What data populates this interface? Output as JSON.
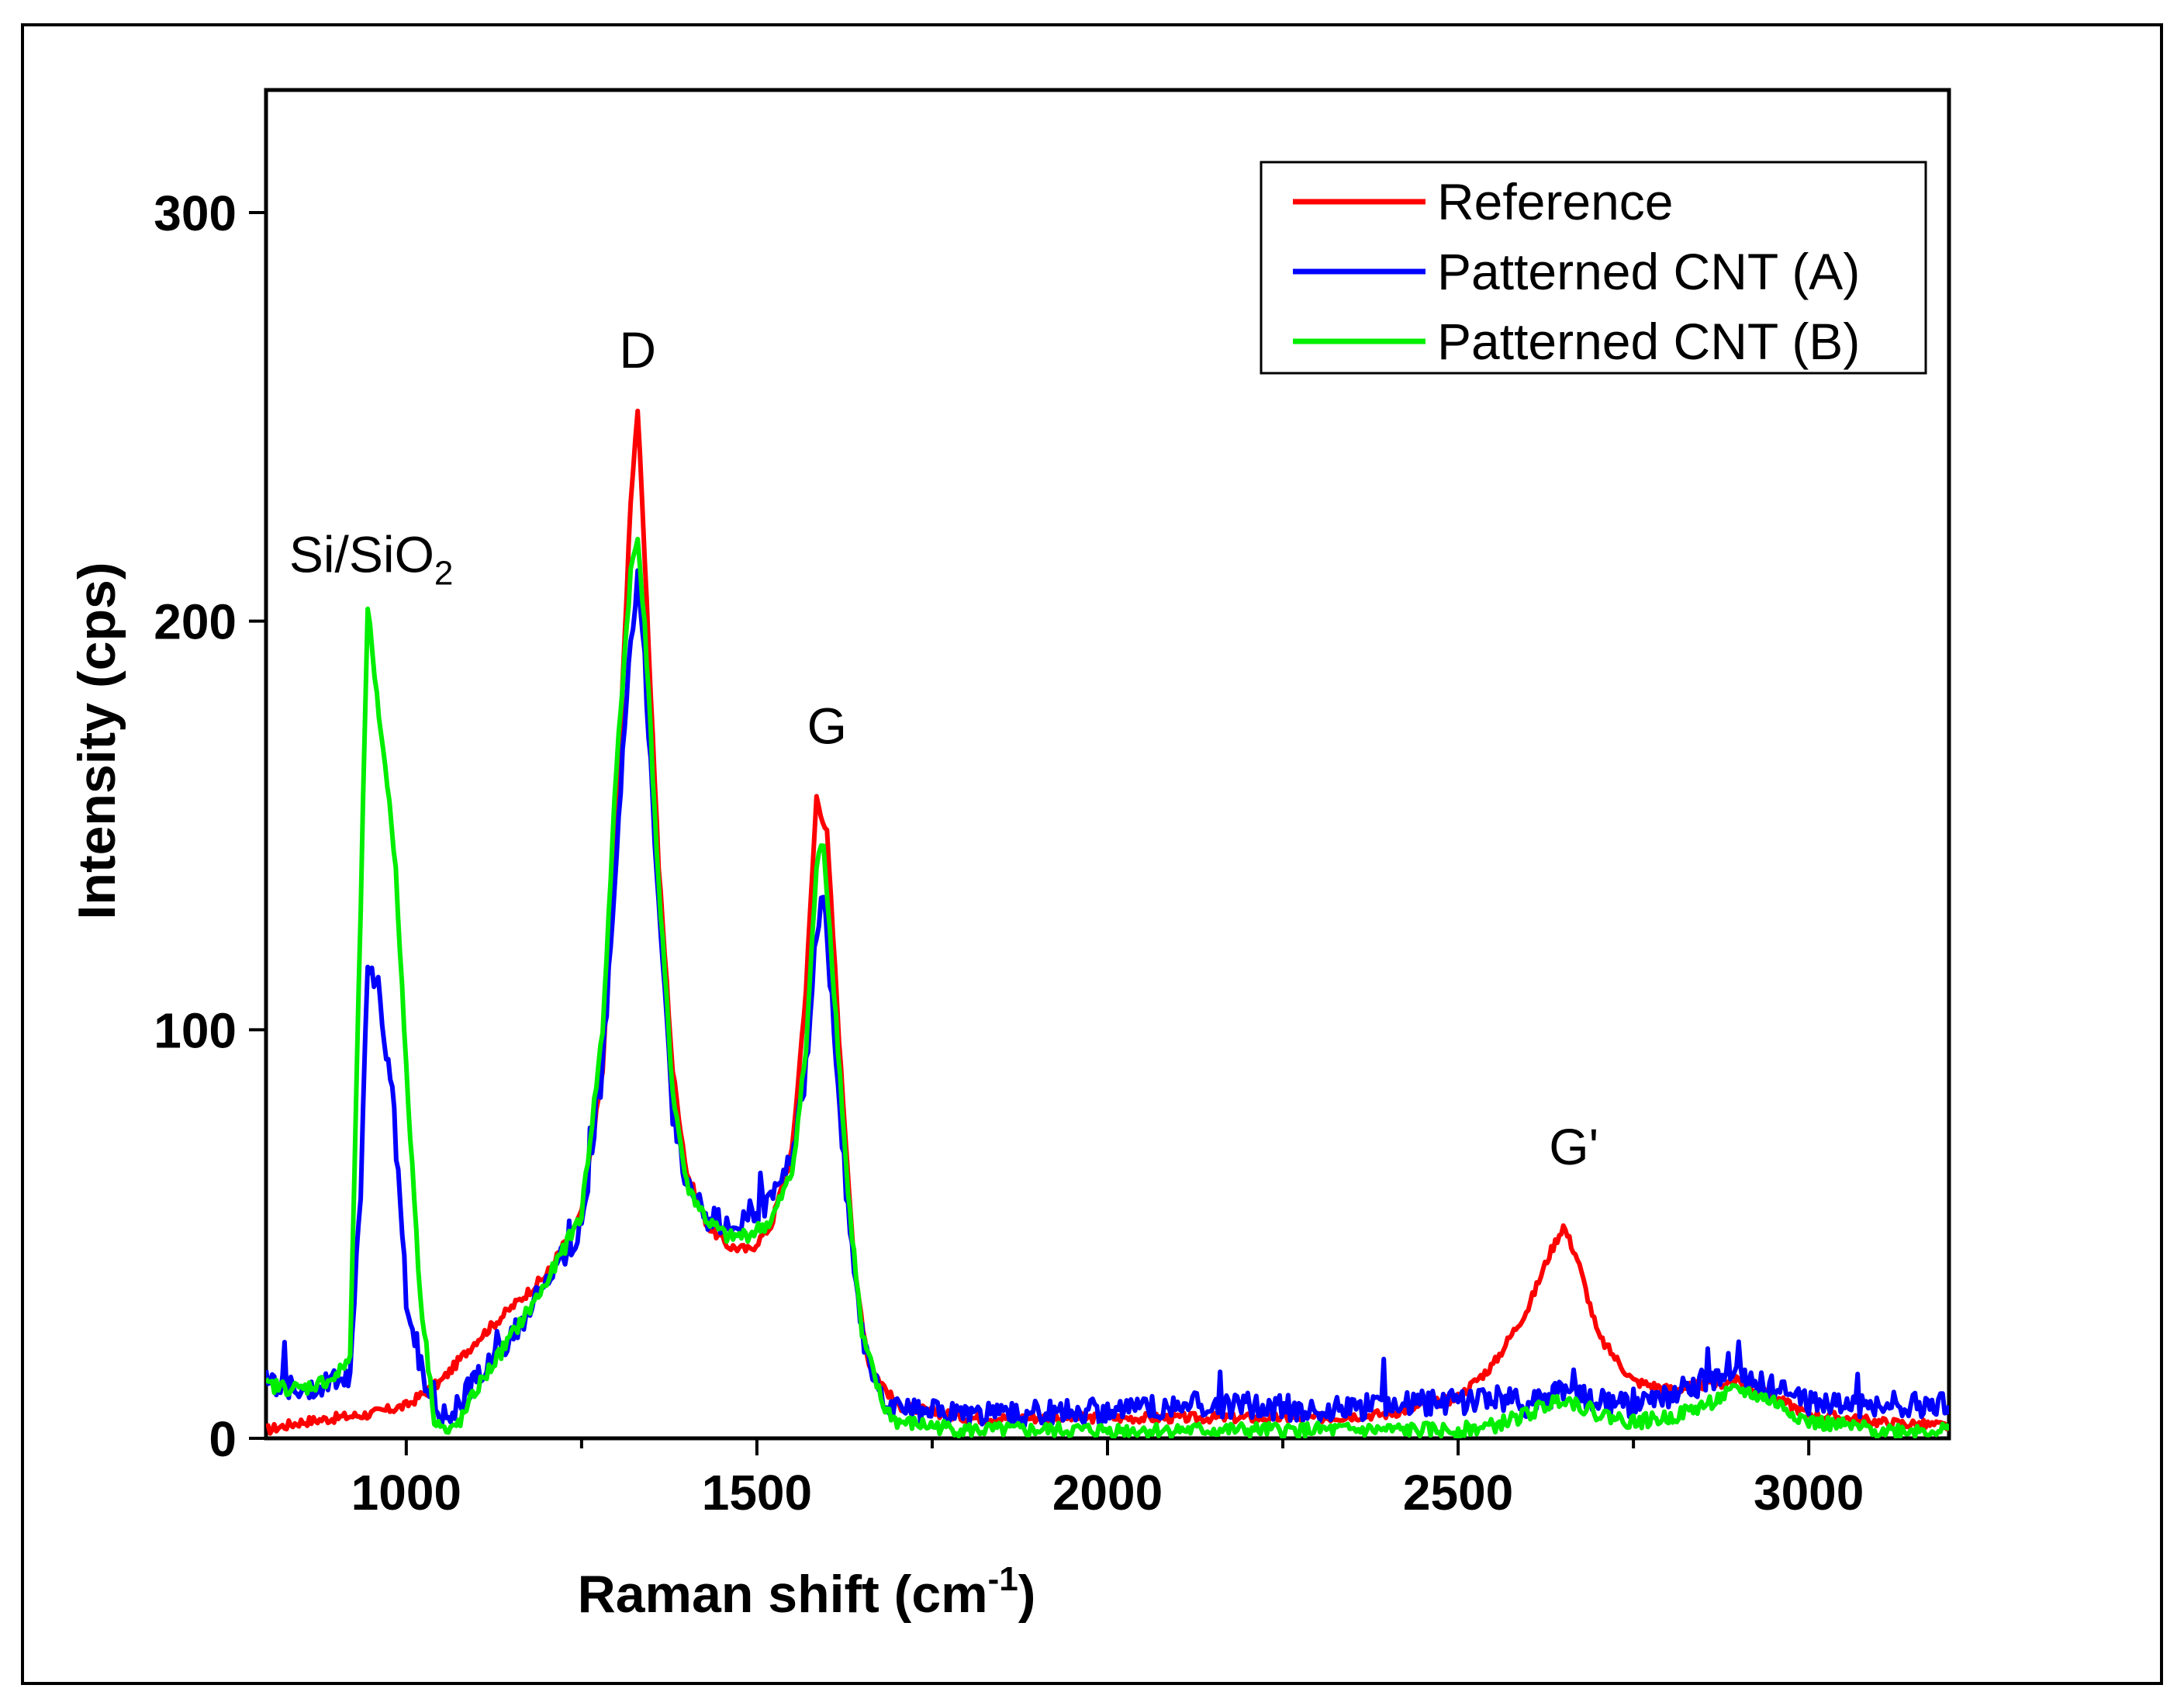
{
  "chart_data": {
    "type": "line",
    "title": "",
    "xlabel": "Raman shift (cm",
    "xlabel_sup": "-1",
    "xlabel_tail": ")",
    "ylabel": "Intensity (cps)",
    "xlim": [
      800,
      3200
    ],
    "ylim": [
      0,
      330
    ],
    "xticks": [
      1000,
      1500,
      2000,
      2500,
      3000
    ],
    "xticks_minor": [
      1250,
      1750,
      2250,
      2750
    ],
    "yticks": [
      0,
      100,
      200,
      300
    ],
    "grid": false,
    "legend_position": "top-right",
    "annotations": [
      {
        "text": "Si/SiO",
        "sub": "2",
        "x": 950,
        "y": 212
      },
      {
        "text": "D",
        "x": 1330,
        "y": 262
      },
      {
        "text": "G",
        "x": 1600,
        "y": 170
      },
      {
        "text": "G'",
        "x": 2665,
        "y": 67
      }
    ],
    "series": [
      {
        "name": "Reference",
        "color": "#ff0000",
        "x": [
          800,
          850,
          900,
          950,
          1000,
          1050,
          1100,
          1150,
          1200,
          1250,
          1280,
          1300,
          1320,
          1330,
          1340,
          1360,
          1380,
          1400,
          1430,
          1460,
          1490,
          1520,
          1550,
          1570,
          1585,
          1600,
          1620,
          1640,
          1660,
          1700,
          1800,
          1900,
          2000,
          2100,
          2200,
          2300,
          2400,
          2500,
          2550,
          2600,
          2630,
          2650,
          2670,
          2700,
          2750,
          2800,
          2900,
          3000,
          3100,
          3200
        ],
        "y": [
          2,
          4,
          5,
          6,
          8,
          14,
          24,
          32,
          40,
          55,
          90,
          150,
          230,
          252,
          215,
          140,
          90,
          65,
          52,
          47,
          46,
          52,
          70,
          110,
          157,
          148,
          90,
          40,
          18,
          8,
          5,
          5,
          5,
          5,
          5,
          5,
          6,
          10,
          18,
          32,
          45,
          52,
          44,
          25,
          14,
          12,
          14,
          6,
          4,
          3
        ]
      },
      {
        "name": "Patterned CNT (A)",
        "color": "#0000ff",
        "x": [
          800,
          850,
          900,
          920,
          935,
          945,
          960,
          980,
          1000,
          1030,
          1060,
          1100,
          1150,
          1200,
          1250,
          1280,
          1300,
          1320,
          1330,
          1340,
          1360,
          1380,
          1400,
          1430,
          1460,
          1490,
          1520,
          1550,
          1570,
          1585,
          1595,
          1610,
          1630,
          1650,
          1680,
          1700,
          1800,
          1900,
          2000,
          2100,
          2200,
          2300,
          2400,
          2500,
          2550,
          2600,
          2650,
          2700,
          2750,
          2800,
          2850,
          2900,
          2950,
          3000,
          3100,
          3200
        ],
        "y": [
          14,
          12,
          14,
          16,
          60,
          118,
          110,
          85,
          35,
          10,
          5,
          15,
          25,
          38,
          52,
          90,
          145,
          195,
          210,
          190,
          130,
          80,
          62,
          54,
          52,
          55,
          58,
          68,
          90,
          125,
          132,
          100,
          55,
          25,
          10,
          7,
          6,
          6,
          7,
          8,
          8,
          7,
          8,
          9,
          10,
          8,
          12,
          9,
          8,
          10,
          14,
          15,
          12,
          9,
          8,
          8
        ]
      },
      {
        "name": "Patterned CNT (B)",
        "color": "#00ee00",
        "x": [
          800,
          850,
          900,
          920,
          935,
          945,
          955,
          970,
          985,
          1000,
          1020,
          1040,
          1060,
          1080,
          1100,
          1150,
          1200,
          1250,
          1280,
          1300,
          1320,
          1330,
          1340,
          1360,
          1380,
          1400,
          1430,
          1460,
          1490,
          1520,
          1550,
          1570,
          1585,
          1595,
          1610,
          1630,
          1650,
          1680,
          1700,
          1800,
          1900,
          2000,
          2100,
          2200,
          2300,
          2400,
          2500,
          2550,
          2600,
          2650,
          2700,
          2750,
          2800,
          2850,
          2900,
          2950,
          3000,
          3100,
          3200
        ],
        "y": [
          13,
          12,
          15,
          20,
          130,
          204,
          185,
          165,
          140,
          90,
          35,
          5,
          1,
          5,
          12,
          25,
          38,
          55,
          100,
          165,
          212,
          220,
          200,
          135,
          85,
          62,
          53,
          49,
          50,
          53,
          65,
          95,
          140,
          146,
          110,
          60,
          25,
          8,
          4,
          2,
          2,
          2,
          2,
          2,
          2,
          2,
          2,
          3,
          6,
          10,
          6,
          4,
          5,
          8,
          12,
          9,
          4,
          2,
          2
        ]
      }
    ]
  }
}
